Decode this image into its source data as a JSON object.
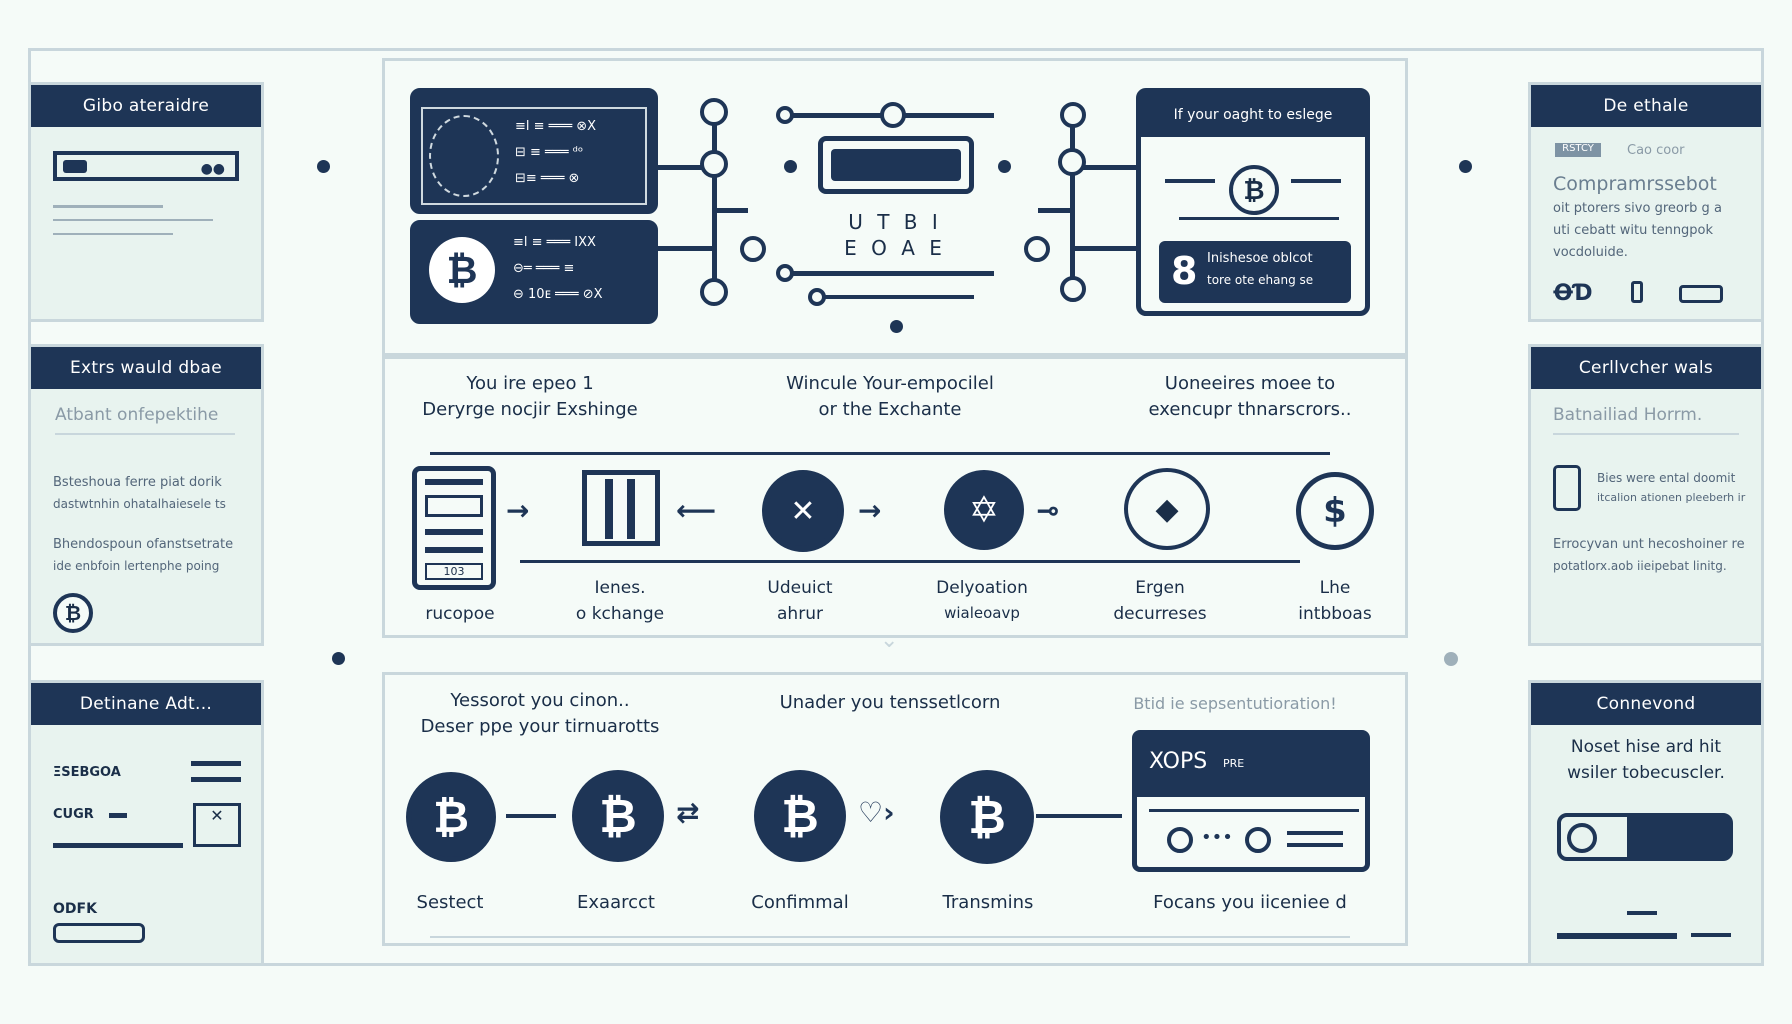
{
  "left_cards": [
    {
      "title": "Gibo ateraidre",
      "lines": []
    },
    {
      "title": "Extrs wauld dbae",
      "subtitle": "Atbant onfepektihe",
      "lines": [
        "Bsteshoua ferre piat dorik",
        "dastwtnhin ohatalhaiesele ts",
        "Bhendospoun ofanstsetrate",
        "ide enbfoin lertenphe poing"
      ]
    },
    {
      "title": "Detinane Adt...",
      "lines": [
        "ΞSEBGOA",
        "CUGR",
        "ODFK"
      ]
    }
  ],
  "right_cards": [
    {
      "title": "De ethale",
      "tag": "RSTCY",
      "tag_text": "Cao coor",
      "heading": "Compramrssebot",
      "lines": [
        "oit ptorers sivo greorb g a",
        "uti cebatt witu tenngpok",
        "vocdoluide."
      ]
    },
    {
      "title": "Cerllvcher wals",
      "subtitle": "Batnailiad   Horrm.",
      "lines": [
        "Bies were ental doomit",
        "itcalion ationen pleeberh ir",
        "Errocyvan unt hecoshoiner re",
        "potatlorx.aob iieipebat linitg."
      ]
    },
    {
      "title": "Connevond",
      "lines": [
        "Noset hise ard hit",
        "wsiler tobecuscler."
      ]
    }
  ],
  "top": {
    "left_screen_rows": [
      "≡l ≡ ═══ ⊗X",
      "⊟ ≡ ═══ ᵈᵒ",
      "⊟≡ ═══ ⊗",
      "≡l ≡ ═══ IXX",
      "⊖═ ═══ ≡",
      "⊖ 10ᴇ ═══ ⊘X"
    ],
    "center_text": [
      "U T B I",
      "E O A E"
    ],
    "right_screen_title": "If your oaght to eslege",
    "right_screen_banner_num": "8",
    "right_screen_banner_lines": [
      "Inishesoe oblcot",
      "tore ote ehang se"
    ]
  },
  "middle": {
    "captions": [
      [
        "You ire epeo 1",
        "Deryrge nocjir Exshinge"
      ],
      [
        "Wincule Your-empocilel",
        "or the Exchante"
      ],
      [
        "Uoneeires moee to",
        "exencupr thnarscrors.."
      ]
    ],
    "steps": [
      {
        "label": [
          "",
          "rucopoe"
        ]
      },
      {
        "label": [
          "Ienes.",
          "o kchange"
        ]
      },
      {
        "label": [
          "Udeuict",
          "ahrur"
        ]
      },
      {
        "label": [
          "Delyoation",
          "wialeoavp"
        ]
      },
      {
        "label": [
          "Ergen",
          "decurreses"
        ]
      },
      {
        "label": [
          "Lhe",
          "intbboas"
        ]
      }
    ],
    "device_label": "103"
  },
  "bottom": {
    "captions": [
      [
        "Yessorot you cinon..",
        "Deser ppe your tirnuarotts"
      ],
      [
        "Unader you tenssetlcorn",
        ""
      ],
      [
        "Btid ie sepsentutioration!",
        ""
      ]
    ],
    "coins": [
      {
        "label": "Sestect"
      },
      {
        "label": "Exaarcct"
      },
      {
        "label": "Confimmal"
      },
      {
        "label": "Transmins"
      }
    ],
    "coin_symbol": "₿",
    "screen_title": "XOPS",
    "screen_tag": "PRE",
    "screen_label": "Focans   you iiceniee d"
  },
  "colors": {
    "navy": "#1e3556",
    "bg": "#f5fbf8",
    "card": "#e8f3ef",
    "line": "#c8d6dc"
  }
}
